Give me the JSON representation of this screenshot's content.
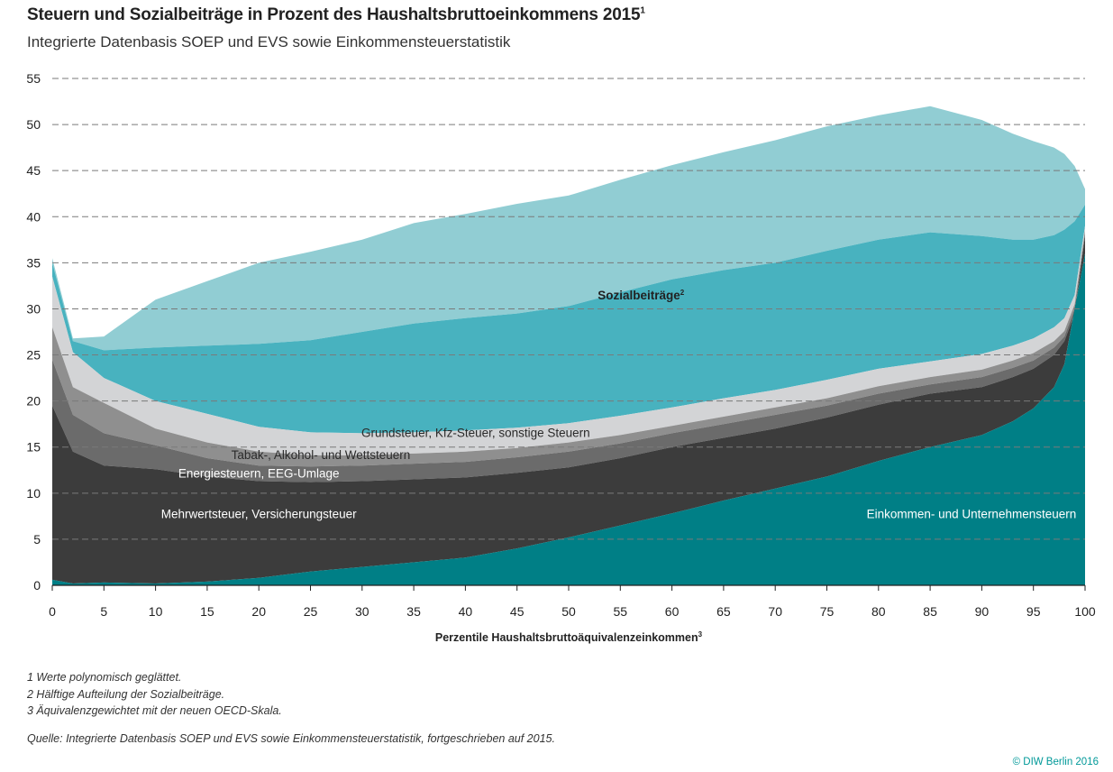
{
  "header": {
    "title": "Steuern und Sozialbeiträge in Prozent des Haushaltsbruttoeinkommens 2015",
    "title_sup": "1",
    "subtitle": "Integrierte Datenbasis SOEP und EVS sowie Einkommensteuerstatistik"
  },
  "footnotes": [
    "1  Werte polynomisch geglättet.",
    "2  Hälftige Aufteilung der Sozialbeiträge.",
    "3  Äquivalenzgewichtet mit der neuen OECD-Skala."
  ],
  "source": "Quelle: Integrierte Datenbasis SOEP und EVS sowie Einkommensteuerstatistik, fortgeschrieben auf 2015.",
  "copyright": "© DIW Berlin 2016",
  "chart_data": {
    "type": "area",
    "stacked": true,
    "title": "Steuern und Sozialbeiträge in Prozent des Haushaltsbruttoeinkommens 2015",
    "xlabel": "Perzentile Haushaltsbruttoäquivalenzeinkommen",
    "xlabel_sup": "3",
    "ylabel": "",
    "xlim": [
      0,
      100
    ],
    "ylim": [
      0,
      55
    ],
    "xticks": [
      0,
      5,
      10,
      15,
      20,
      25,
      30,
      35,
      40,
      45,
      50,
      55,
      60,
      65,
      70,
      75,
      80,
      85,
      90,
      95,
      100
    ],
    "yticks": [
      0,
      5,
      10,
      15,
      20,
      25,
      30,
      35,
      40,
      45,
      50,
      55
    ],
    "grid": "horizontal dashed",
    "x": [
      0,
      2,
      5,
      10,
      15,
      20,
      25,
      30,
      35,
      40,
      45,
      50,
      55,
      60,
      65,
      70,
      75,
      80,
      85,
      90,
      93,
      95,
      97,
      98,
      99,
      100
    ],
    "series": [
      {
        "name": "Einkommen- und Unternehmensteuern",
        "color": "#007f86",
        "label_pos": [
          89,
          7.8
        ],
        "cumulative": [
          0.6,
          0.2,
          0.3,
          0.2,
          0.4,
          0.8,
          1.5,
          2.0,
          2.5,
          3.0,
          4.0,
          5.2,
          6.5,
          7.8,
          9.2,
          10.5,
          11.8,
          13.5,
          15.0,
          16.3,
          17.8,
          19.2,
          21.5,
          24.0,
          30.0,
          36.0
        ]
      },
      {
        "name": "Mehrwertsteuer, Versicherungsteuer",
        "color": "#3c3c3c",
        "label_pos": [
          20,
          7.8
        ],
        "cumulative": [
          19.5,
          14.5,
          13.0,
          12.6,
          11.8,
          11.3,
          11.2,
          11.3,
          11.5,
          11.7,
          12.2,
          12.8,
          13.8,
          15.0,
          16.0,
          17.0,
          18.2,
          19.6,
          20.8,
          21.5,
          22.6,
          23.5,
          25.0,
          26.5,
          29.5,
          38.0
        ]
      },
      {
        "name": "Energiesteuern, EEG-Umlage",
        "color": "#6b6b6b",
        "label_pos": [
          20,
          12.2
        ],
        "cumulative": [
          24.5,
          18.5,
          16.5,
          15.2,
          13.8,
          13.0,
          12.9,
          13.0,
          13.2,
          13.4,
          13.9,
          14.5,
          15.4,
          16.5,
          17.5,
          18.5,
          19.5,
          20.8,
          21.8,
          22.6,
          23.6,
          24.4,
          25.8,
          27.0,
          30.0,
          38.3
        ]
      },
      {
        "name": "Tabak-, Alkohol- und Wettsteuern",
        "color": "#8f8f8f",
        "label_pos": [
          26,
          14.2
        ],
        "cumulative": [
          28.0,
          21.5,
          19.8,
          17.0,
          15.5,
          14.5,
          14.1,
          14.1,
          14.3,
          14.5,
          14.9,
          15.5,
          16.3,
          17.3,
          18.3,
          19.3,
          20.3,
          21.6,
          22.6,
          23.4,
          24.4,
          25.2,
          26.5,
          27.6,
          30.5,
          38.5
        ]
      },
      {
        "name": "Grundsteuer, Kfz-Steuer, sonstige Steuern",
        "color": "#d3d4d6",
        "label_pos": [
          41,
          16.6
        ],
        "cumulative": [
          33.5,
          25.3,
          22.5,
          20.0,
          18.6,
          17.2,
          16.6,
          16.5,
          16.6,
          16.8,
          17.1,
          17.6,
          18.4,
          19.3,
          20.3,
          21.2,
          22.3,
          23.5,
          24.3,
          25.1,
          26.0,
          26.8,
          28.0,
          29.0,
          31.5,
          39.0
        ]
      },
      {
        "name": "Sozialbeiträge",
        "name_sup": "2",
        "color": "#48b2bf",
        "label_pos": [
          57,
          31.5
        ],
        "cumulative": [
          35.0,
          26.5,
          25.5,
          25.8,
          26.0,
          26.2,
          26.6,
          27.5,
          28.4,
          29.0,
          29.5,
          30.3,
          31.8,
          33.2,
          34.2,
          35.0,
          36.3,
          37.5,
          38.3,
          37.9,
          37.5,
          37.5,
          38.0,
          38.6,
          39.5,
          41.3
        ]
      },
      {
        "name": "",
        "color": "#91cdd3",
        "cumulative": [
          35.5,
          26.8,
          27.0,
          31.0,
          33.0,
          35.0,
          36.2,
          37.5,
          39.3,
          40.3,
          41.4,
          42.3,
          44.0,
          45.6,
          47.0,
          48.3,
          49.8,
          51.0,
          52.0,
          50.5,
          49.0,
          48.2,
          47.5,
          46.8,
          45.5,
          43.0
        ]
      }
    ]
  }
}
